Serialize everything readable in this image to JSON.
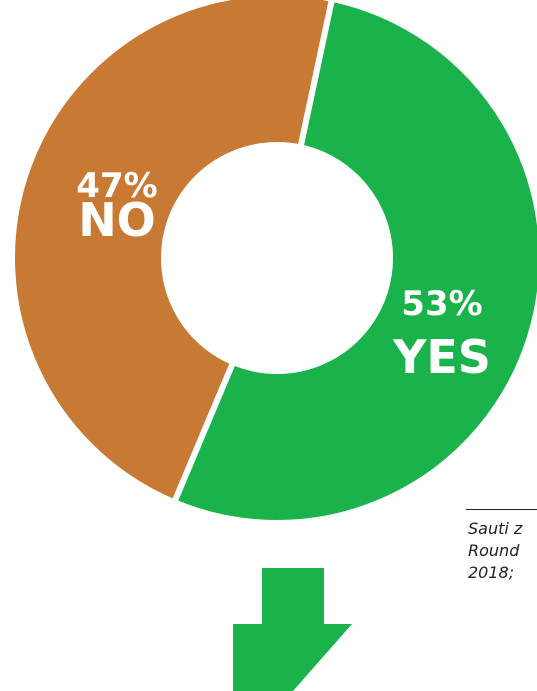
{
  "chart_data": {
    "type": "pie",
    "variant": "donut",
    "slices": [
      {
        "label": "NO",
        "value": 47,
        "pct_label": "47%",
        "color": "#c87a35"
      },
      {
        "label": "YES",
        "value": 53,
        "pct_label": "53%",
        "color": "#19b24b"
      }
    ],
    "legend": "none"
  },
  "arrow": {
    "color": "#19b24b",
    "direction": "down"
  },
  "source": {
    "lines": [
      "Sauti z",
      "Round",
      "2018;"
    ]
  }
}
